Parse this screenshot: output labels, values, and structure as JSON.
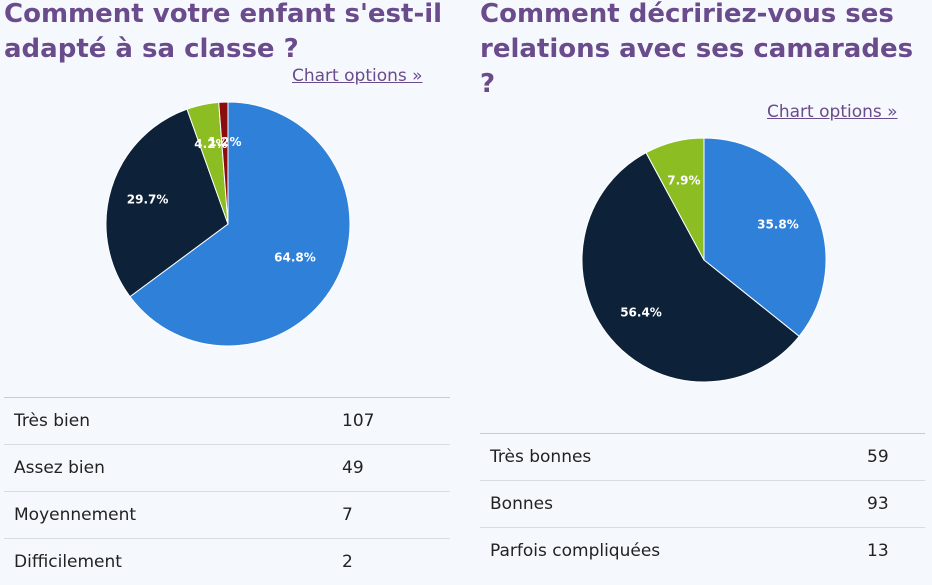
{
  "colors": {
    "accent": "#6a4b8c",
    "tres_bien": "#2f80d8",
    "assez_bien": "#0d2139",
    "moyennement": "#8cbd22",
    "difficilement": "#8b0d0d"
  },
  "left": {
    "title_line1": "Comment votre enfant s'est-il",
    "title_line2": "adapté à sa classe ?",
    "chart_options": "Chart options »",
    "rows": [
      {
        "label": "Très bien",
        "value": "107"
      },
      {
        "label": "Assez bien",
        "value": "49"
      },
      {
        "label": "Moyennement",
        "value": "7"
      },
      {
        "label": "Difficilement",
        "value": "2"
      }
    ]
  },
  "right": {
    "title_line1": "Comment décririez-vous ses",
    "title_line2": "relations avec ses camarades",
    "title_line3": "?",
    "chart_options": "Chart options »",
    "rows": [
      {
        "label": "Très bonnes",
        "value": "59"
      },
      {
        "label": "Bonnes",
        "value": "93"
      },
      {
        "label": "Parfois compliquées",
        "value": "13"
      }
    ]
  },
  "chart_data": [
    {
      "type": "pie",
      "title": "Comment votre enfant s'est-il adapté à sa classe ?",
      "categories": [
        "Très bien",
        "Assez bien",
        "Moyennement",
        "Difficilement"
      ],
      "values": [
        107,
        49,
        7,
        2
      ],
      "labels": [
        "64.8%",
        "29.7%",
        "4.2%",
        "1.2%"
      ],
      "colors": [
        "#2f80d8",
        "#0d2139",
        "#8cbd22",
        "#8b0d0d"
      ]
    },
    {
      "type": "pie",
      "title": "Comment décririez-vous ses relations avec ses camarades ?",
      "categories": [
        "Très bonnes",
        "Bonnes",
        "Parfois compliquées"
      ],
      "values": [
        59,
        93,
        13
      ],
      "labels": [
        "35.8%",
        "56.4%",
        "7.9%"
      ],
      "colors": [
        "#2f80d8",
        "#0d2139",
        "#8cbd22"
      ]
    }
  ]
}
